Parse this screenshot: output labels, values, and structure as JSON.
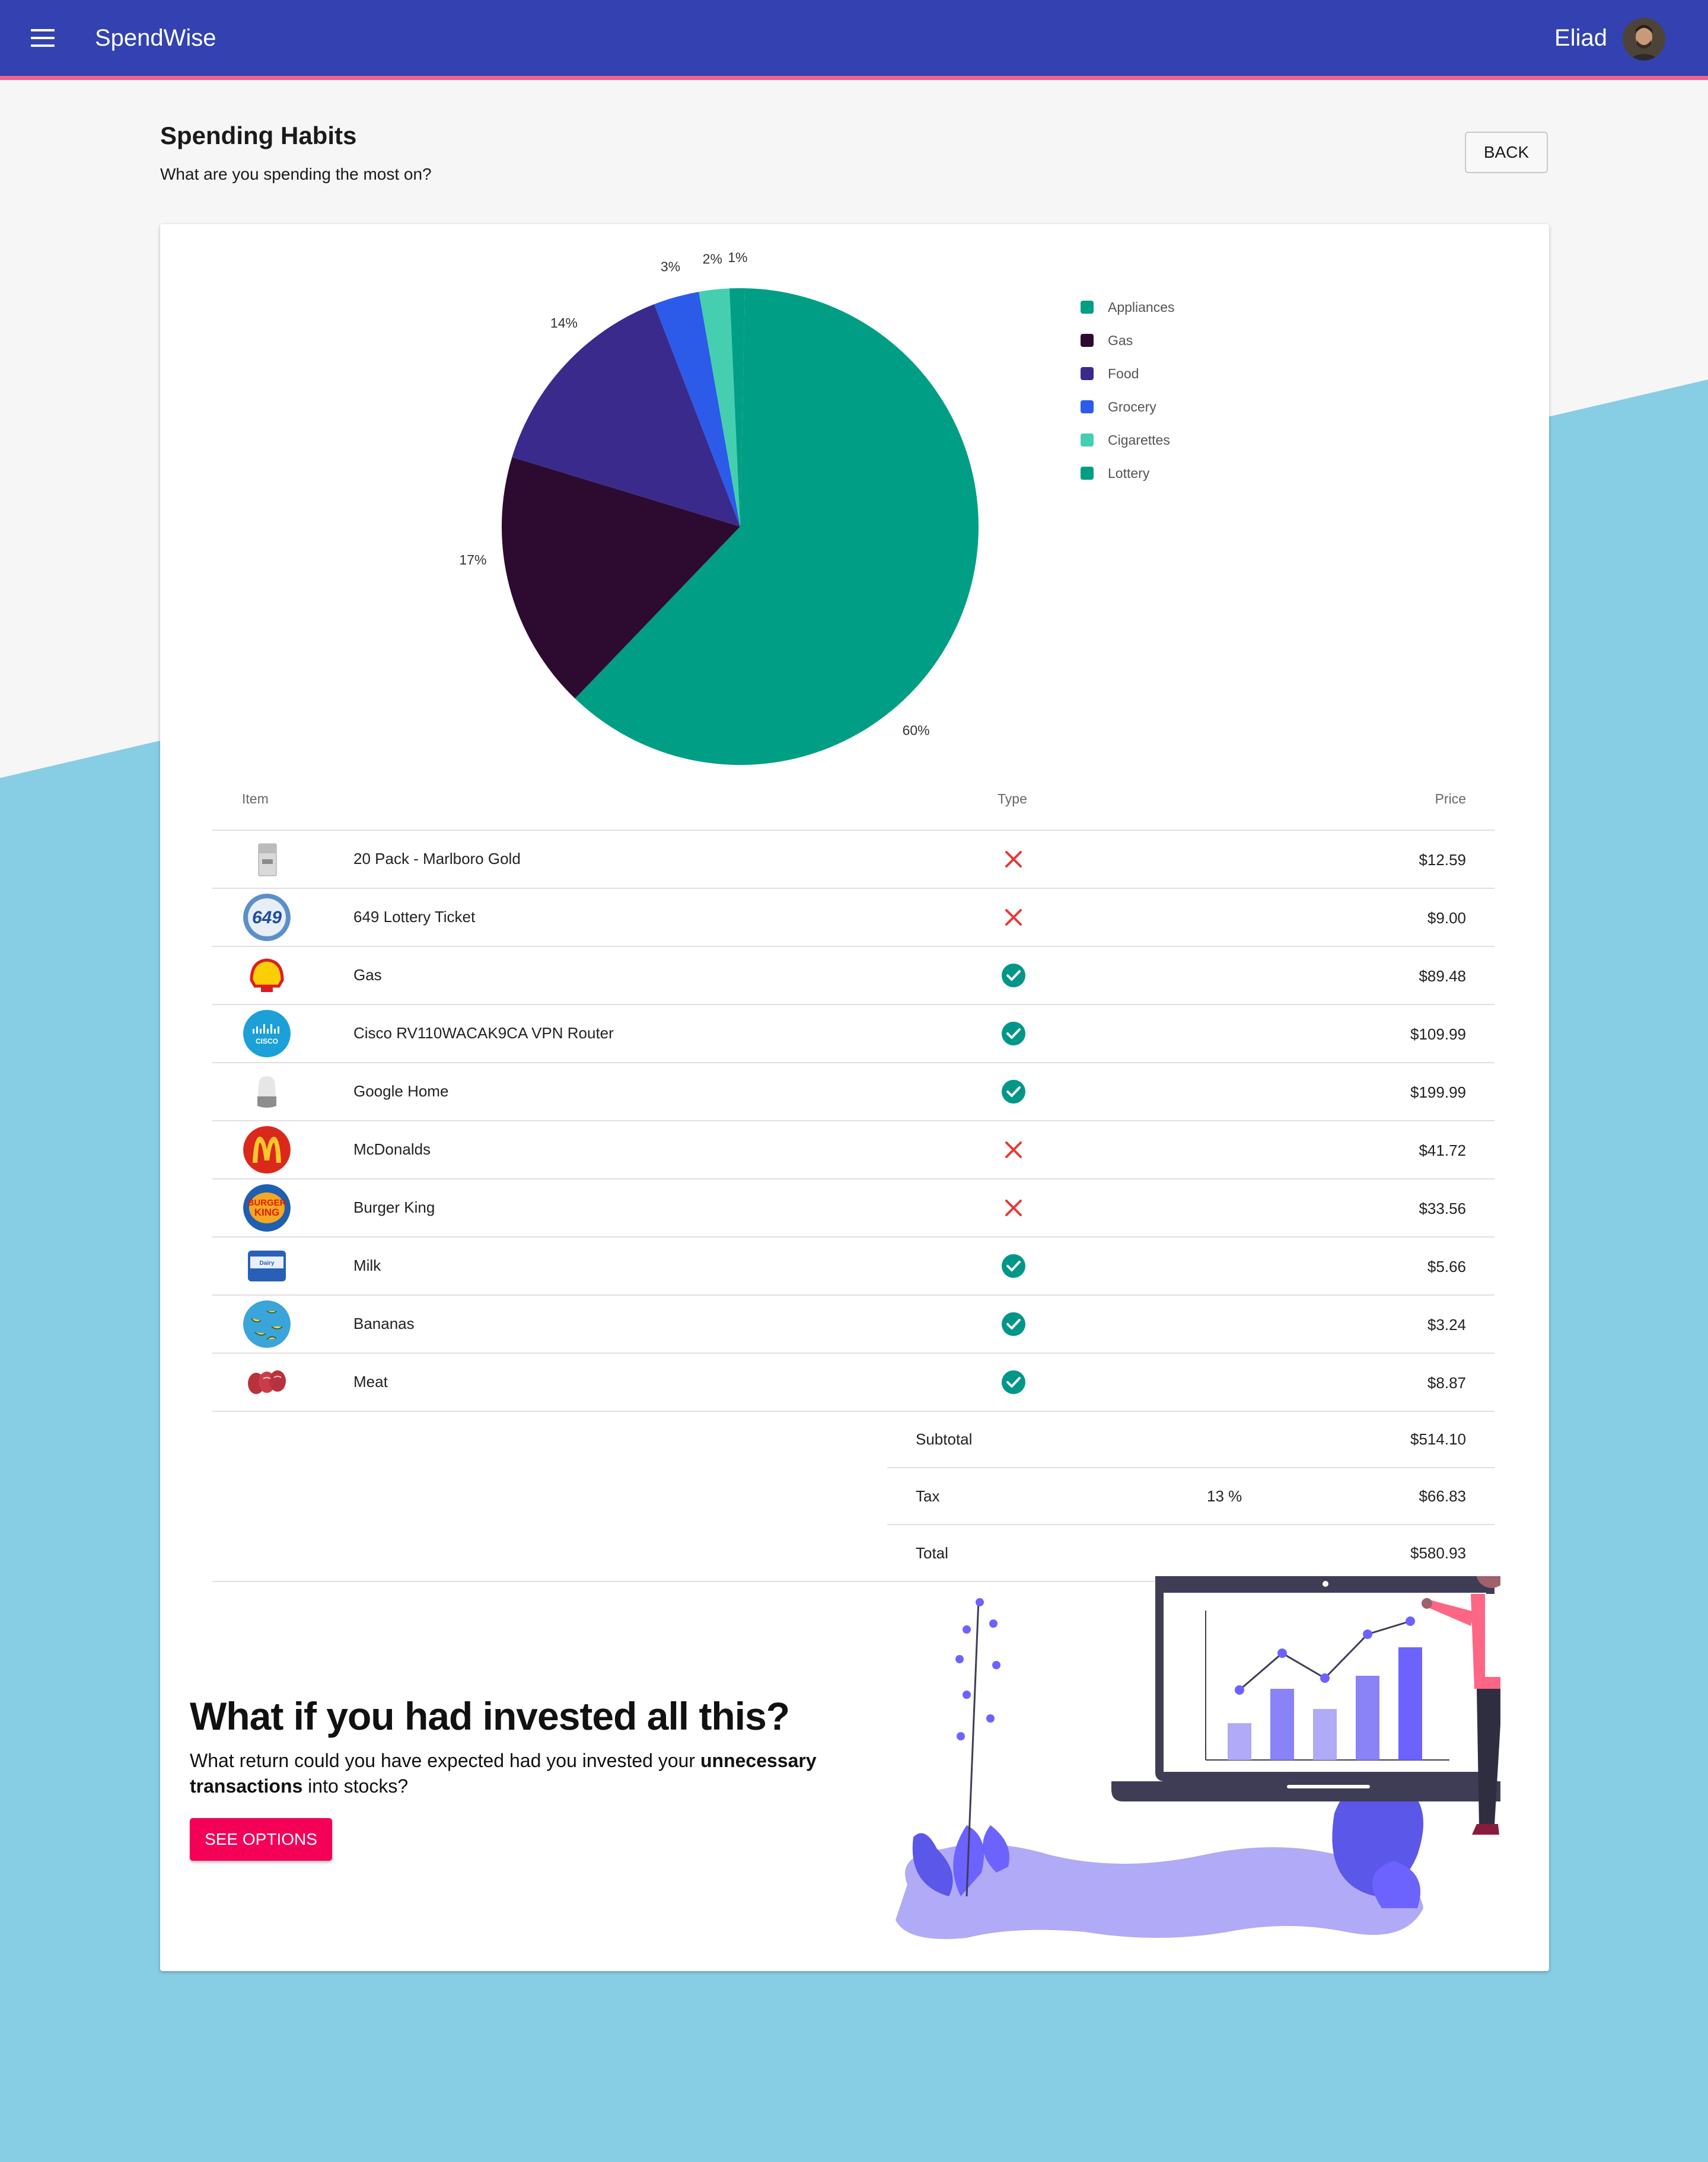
{
  "app": {
    "title": "SpendWise",
    "user": "Eliad"
  },
  "header": {
    "title": "Spending Habits",
    "subtitle": "What are you spending the most on?",
    "back_label": "BACK"
  },
  "colors": {
    "appbar": "#3342b0",
    "accent_stripe": "#f06292",
    "background_blue": "#87cde4",
    "check_green": "#009688",
    "cross_red": "#e53935",
    "cta": "#f50057"
  },
  "chart_data": {
    "type": "pie",
    "slices": [
      {
        "label": "Lottery",
        "value": 60,
        "text": "60%",
        "color": "#009e84"
      },
      {
        "label": "Gas",
        "value": 17,
        "text": "17%",
        "color": "#2d0a30"
      },
      {
        "label": "Food",
        "value": 14,
        "text": "14%",
        "color": "#3a2a8c"
      },
      {
        "label": "Grocery",
        "value": 3,
        "text": "3%",
        "color": "#2b5be8"
      },
      {
        "label": "Cigarettes",
        "value": 2,
        "text": "2%",
        "color": "#45cfb0"
      },
      {
        "label": "Appliances",
        "value": 1,
        "text": "1%",
        "color": "#009e84"
      }
    ],
    "legend": [
      {
        "label": "Appliances",
        "color": "#009e84"
      },
      {
        "label": "Gas",
        "color": "#2d0a30"
      },
      {
        "label": "Food",
        "color": "#3a2a8c"
      },
      {
        "label": "Grocery",
        "color": "#2b5be8"
      },
      {
        "label": "Cigarettes",
        "color": "#45cfb0"
      },
      {
        "label": "Lottery",
        "color": "#009e84"
      }
    ],
    "legend_position": "right"
  },
  "table": {
    "headers": {
      "item": "Item",
      "type": "Type",
      "price": "Price"
    },
    "rows": [
      {
        "item": "20 Pack - Marlboro Gold",
        "type": "unnecessary",
        "price": "$12.59",
        "icon": "cigarette-pack-icon"
      },
      {
        "item": "649 Lottery Ticket",
        "type": "unnecessary",
        "price": "$9.00",
        "icon": "lottery-649-logo"
      },
      {
        "item": "Gas",
        "type": "necessary",
        "price": "$89.48",
        "icon": "shell-logo"
      },
      {
        "item": "Cisco RV110WACAK9CA VPN Router",
        "type": "necessary",
        "price": "$109.99",
        "icon": "cisco-logo"
      },
      {
        "item": "Google Home",
        "type": "necessary",
        "price": "$199.99",
        "icon": "google-home-icon"
      },
      {
        "item": "McDonalds",
        "type": "unnecessary",
        "price": "$41.72",
        "icon": "mcdonalds-logo"
      },
      {
        "item": "Burger King",
        "type": "unnecessary",
        "price": "$33.56",
        "icon": "burger-king-logo"
      },
      {
        "item": "Milk",
        "type": "necessary",
        "price": "$5.66",
        "icon": "milk-carton-icon"
      },
      {
        "item": "Bananas",
        "type": "necessary",
        "price": "$3.24",
        "icon": "bananas-icon"
      },
      {
        "item": "Meat",
        "type": "necessary",
        "price": "$8.87",
        "icon": "meat-icon"
      }
    ],
    "summary": {
      "subtotal_label": "Subtotal",
      "subtotal": "$514.10",
      "tax_label": "Tax",
      "tax_rate": "13 %",
      "tax": "$66.83",
      "total_label": "Total",
      "total": "$580.93"
    }
  },
  "invest": {
    "title": "What if you had invested all this?",
    "text_before": "What return could you have expected had you invested your ",
    "text_bold": "unnecessary transactions",
    "text_after": " into stocks?",
    "button_label": "SEE OPTIONS"
  }
}
